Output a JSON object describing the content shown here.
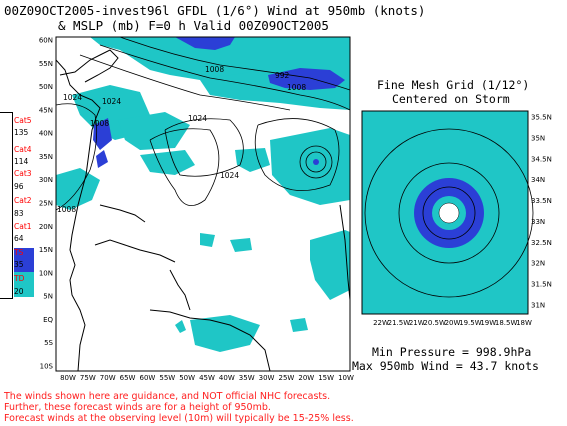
{
  "header": {
    "title_line1": "00Z09OCT2005-invest96l GFDL (1/6°) Wind at 950mb (knots)",
    "title_line2": "& MSLP (mb) F=0 h Valid 00Z09OCT2005"
  },
  "legend": {
    "items": [
      {
        "label": "Cat5",
        "color": "#ff0000"
      },
      {
        "label": "135",
        "color": "#000000"
      },
      {
        "label": "Cat4",
        "color": "#ff0000"
      },
      {
        "label": "114",
        "color": "#000000"
      },
      {
        "label": "Cat3",
        "color": "#ff0000"
      },
      {
        "label": "96",
        "color": "#000000"
      },
      {
        "label": "Cat2",
        "color": "#ff0000"
      },
      {
        "label": "83",
        "color": "#000000"
      },
      {
        "label": "Cat1",
        "color": "#ff0000"
      },
      {
        "label": "64",
        "color": "#000000"
      },
      {
        "label": "TS",
        "color": "#ff0000"
      },
      {
        "label": "35",
        "color": "#000000"
      },
      {
        "label": "TD",
        "color": "#ff0000"
      },
      {
        "label": "20",
        "color": "#000000"
      }
    ],
    "colors": {
      "ts": "#2b3fd6",
      "td": "#1fc6c6"
    }
  },
  "main_map": {
    "lat_labels": [
      "60N",
      "55N",
      "50N",
      "45N",
      "40N",
      "35N",
      "30N",
      "25N",
      "20N",
      "15N",
      "10N",
      "5N",
      "EQ",
      "5S",
      "10S"
    ],
    "lon_labels": [
      "80W",
      "75W",
      "70W",
      "65W",
      "60W",
      "55W",
      "50W",
      "45W",
      "40W",
      "35W",
      "30W",
      "25W",
      "20W",
      "15W",
      "10W"
    ],
    "isobar_labels": [
      "992",
      "1008",
      "1024",
      "1024",
      "1024",
      "1008",
      "1024",
      "1008",
      "1008"
    ]
  },
  "fine_mesh": {
    "title_line1": "Fine Mesh Grid (1/12°)",
    "title_line2": "Centered on Storm",
    "lat_labels": [
      "35.5N",
      "35N",
      "34.5N",
      "34N",
      "33.5N",
      "33N",
      "32.5N",
      "32N",
      "31.5N",
      "31N"
    ],
    "lon_labels": [
      "22W",
      "21.5W",
      "21W",
      "20.5W",
      "20W",
      "19.5W",
      "19W",
      "18.5W",
      "18W"
    ]
  },
  "stats": {
    "min_pressure": "Min Pressure = 998.9hPa",
    "max_wind": "Max 950mb Wind = 43.7 knots"
  },
  "disclaimer": {
    "line1": "The winds shown here are guidance, and NOT official NHC forecasts.",
    "line2": "Further, these forecast winds are for a height of 950mb.",
    "line3": "Forecast winds at the observing level (10m) will typically be 15-25% less."
  }
}
